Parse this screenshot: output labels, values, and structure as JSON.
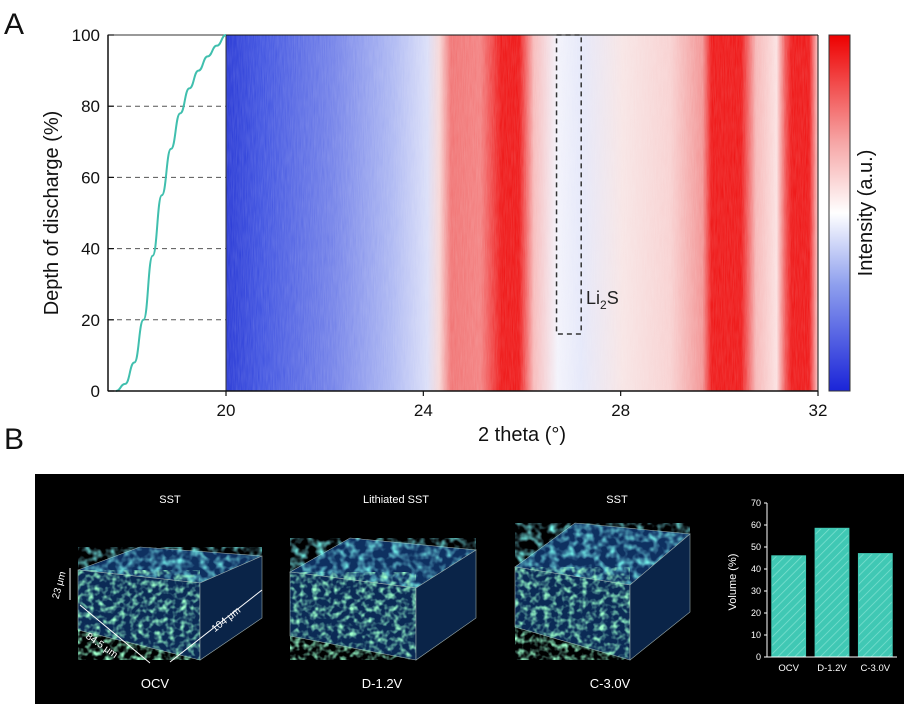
{
  "panel_a": {
    "label": "A",
    "chart_data": {
      "type": "heatmap",
      "xlabel": "2 theta (°)",
      "ylabel": "Depth of discharge (%)",
      "x_ticks": [
        "20",
        "24",
        "28",
        "32"
      ],
      "y_ticks": [
        "0",
        "20",
        "40",
        "60",
        "80",
        "100"
      ],
      "xlim": [
        20,
        32
      ],
      "ylim": [
        0,
        100
      ],
      "colorbar_label": "Intensity (a.u.)",
      "annotation": {
        "text": "Li",
        "subscript": "2",
        "suffix": "S",
        "x_range": [
          26.7,
          27.2
        ],
        "y_range": [
          16,
          100
        ]
      },
      "intensity_peaks_2theta": [
        24.7,
        25.5,
        30.1,
        31.6
      ],
      "discharge_curve_depth": [
        0,
        2,
        8,
        20,
        38,
        55,
        68,
        78,
        85,
        90,
        94,
        97,
        100
      ]
    }
  },
  "panel_b": {
    "label": "B",
    "volumes": [
      {
        "title": "SST",
        "caption": "OCV"
      },
      {
        "title": "Lithiated SST",
        "caption": "D-1.2V"
      },
      {
        "title": "SST",
        "caption": "C-3.0V"
      }
    ],
    "dims": {
      "depth": "23 μm",
      "width": "84.5 μm",
      "length": "104 μm"
    },
    "chart_data": {
      "type": "bar",
      "categories": [
        "OCV",
        "D-1.2V",
        "C-3.0V"
      ],
      "values": [
        46,
        58.5,
        47
      ],
      "ylabel": "Volume (%)",
      "ylim": [
        0,
        70
      ],
      "y_ticks": [
        "0",
        "10",
        "20",
        "30",
        "40",
        "50",
        "60",
        "70"
      ],
      "bar_color": "#40c8b4"
    }
  },
  "colors": {
    "teal": "#40bfae",
    "red": "#ee1c24",
    "blue": "#2134d6"
  }
}
